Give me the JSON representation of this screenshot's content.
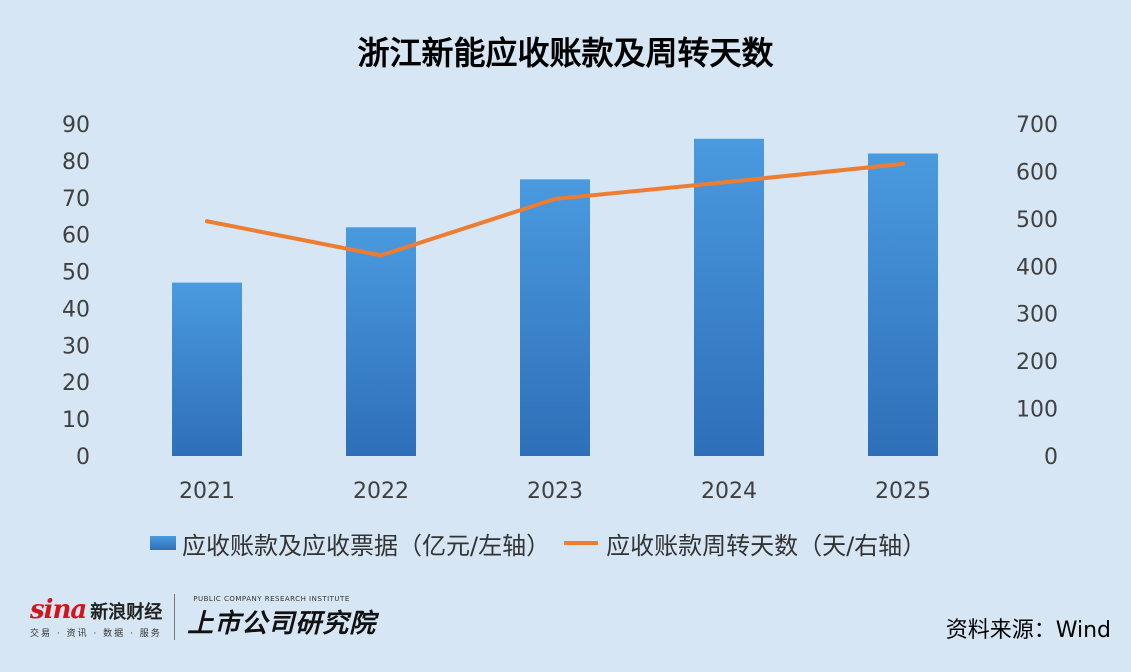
{
  "chart_data": {
    "type": "bar+line",
    "title": "浙江新能应收账款及周转天数",
    "categories": [
      "2021",
      "2022",
      "2023",
      "2024",
      "2025"
    ],
    "series": [
      {
        "name": "应收账款及应收票据（亿元/左轴）",
        "type": "bar",
        "axis": "left",
        "values": [
          47,
          62,
          75,
          86,
          82
        ],
        "color": "#3a87d4"
      },
      {
        "name": "应收账款周转天数（天/右轴）",
        "type": "line",
        "axis": "right",
        "values": [
          495,
          423,
          542,
          578,
          616
        ],
        "color": "#ed7d31"
      }
    ],
    "y_left": {
      "range": [
        0,
        90
      ],
      "ticks": [
        "0",
        "10",
        "20",
        "30",
        "40",
        "50",
        "60",
        "70",
        "80",
        "90"
      ]
    },
    "y_right": {
      "range": [
        0,
        700
      ],
      "ticks": [
        "0",
        "100",
        "200",
        "300",
        "400",
        "500",
        "600",
        "700"
      ]
    },
    "grid": false,
    "legend_position": "bottom"
  },
  "footer": {
    "sina_word": "sina",
    "sina_name": "新浪财经",
    "sina_tagline": "交易 · 资讯 · 数据 · 服务",
    "institute_en": "PUBLIC COMPANY RESEARCH INSTITUTE",
    "institute_cn": "上市公司研究院",
    "source": "资料来源：Wind"
  }
}
